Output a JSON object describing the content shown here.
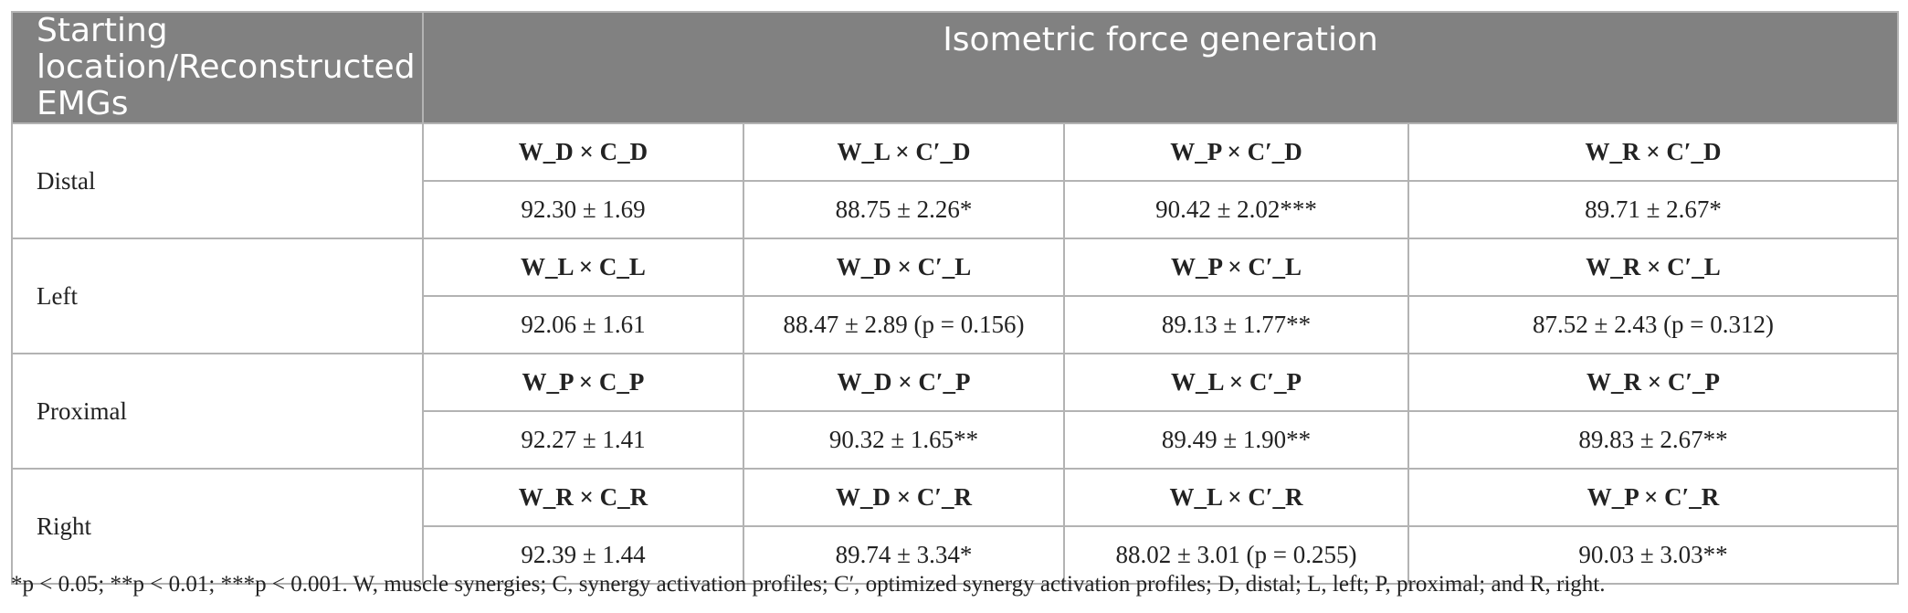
{
  "header": {
    "starting_location": "Starting location/Reconstructed EMGs",
    "force_generation": "Isometric force generation"
  },
  "rows": [
    {
      "location": "Distal",
      "combos": [
        "W_D × C_D",
        "W_L × C′_D",
        "W_P × C′_D",
        "W_R × C′_D"
      ],
      "values": [
        "92.30 ± 1.69",
        "88.75 ± 2.26*",
        "90.42 ± 2.02***",
        "89.71 ± 2.67*"
      ]
    },
    {
      "location": "Left",
      "combos": [
        "W_L × C_L",
        "W_D × C′_L",
        "W_P × C′_L",
        "W_R × C′_L"
      ],
      "values": [
        "92.06 ± 1.61",
        "88.47 ± 2.89 (p = 0.156)",
        "89.13 ± 1.77**",
        "87.52 ± 2.43 (p = 0.312)"
      ]
    },
    {
      "location": "Proximal",
      "combos": [
        "W_P × C_P",
        "W_D × C′_P",
        "W_L × C′_P",
        "W_R × C′_P"
      ],
      "values": [
        "92.27 ± 1.41",
        "90.32 ± 1.65**",
        "89.49 ± 1.90**",
        "89.83 ± 2.67**"
      ]
    },
    {
      "location": "Right",
      "combos": [
        "W_R × C_R",
        "W_D × C′_R",
        "W_L × C′_R",
        "W_P × C′_R"
      ],
      "values": [
        "92.39 ± 1.44",
        "89.74 ± 3.34*",
        "88.02 ± 3.01 (p = 0.255)",
        "90.03 ± 3.03**"
      ]
    }
  ],
  "footnote": "*p < 0.05; **p < 0.01; ***p < 0.001. W, muscle synergies; C, synergy activation profiles; C′, optimized synergy activation profiles; D, distal; L, left; P, proximal; and R, right."
}
